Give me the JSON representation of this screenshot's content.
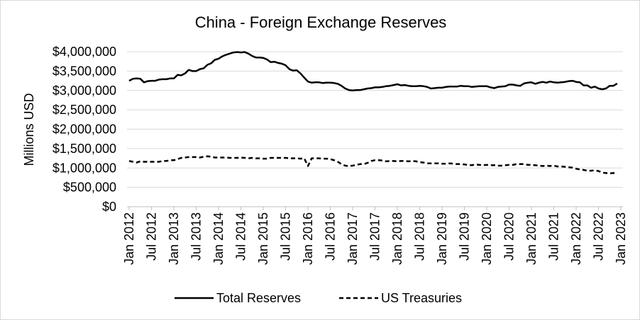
{
  "chart_data": {
    "type": "line",
    "title": "China - Foreign Exchange Reserves",
    "xlabel": "",
    "ylabel": "Millions USD",
    "ylim": [
      0,
      4000000
    ],
    "y_ticks": [
      0,
      500000,
      1000000,
      1500000,
      2000000,
      2500000,
      3000000,
      3500000,
      4000000
    ],
    "y_tick_labels": [
      "$0",
      "$500,000",
      "$1,000,000",
      "$1,500,000",
      "$2,000,000",
      "$2,500,000",
      "$3,000,000",
      "$3,500,000",
      "$4,000,000"
    ],
    "x_tick_labels": [
      "Jan 2012",
      "Jul 2012",
      "Jan 2013",
      "Jul 2013",
      "Jan 2014",
      "Jul 2014",
      "Jan 2015",
      "Jul 2015",
      "Jan 2016",
      "Jul 2016",
      "Jan 2017",
      "Jul 2017",
      "Jan 2018",
      "Jul 2018",
      "Jan 2019",
      "Jul 2019",
      "Jan 2020",
      "Jul 2020",
      "Jan 2021",
      "Jul 2021",
      "Jan 2022",
      "Jul 2022",
      "Jan 2023"
    ],
    "grid": "horizontal",
    "legend_position": "bottom",
    "series": [
      {
        "name": "Total Reserves",
        "style": "solid",
        "values": [
          3250000,
          3300000,
          3310000,
          3300000,
          3210000,
          3240000,
          3250000,
          3250000,
          3280000,
          3290000,
          3290000,
          3310000,
          3310000,
          3400000,
          3390000,
          3440000,
          3530000,
          3500000,
          3500000,
          3550000,
          3570000,
          3660000,
          3700000,
          3790000,
          3820000,
          3880000,
          3920000,
          3950000,
          3980000,
          3990000,
          3980000,
          3990000,
          3950000,
          3890000,
          3850000,
          3850000,
          3840000,
          3800000,
          3730000,
          3740000,
          3710000,
          3690000,
          3650000,
          3550000,
          3510000,
          3520000,
          3440000,
          3330000,
          3230000,
          3200000,
          3210000,
          3210000,
          3190000,
          3200000,
          3200000,
          3190000,
          3170000,
          3120000,
          3050000,
          3010000,
          3000000,
          3010000,
          3010000,
          3030000,
          3050000,
          3060000,
          3080000,
          3080000,
          3090000,
          3110000,
          3120000,
          3140000,
          3160000,
          3130000,
          3140000,
          3120000,
          3110000,
          3110000,
          3120000,
          3110000,
          3090000,
          3050000,
          3060000,
          3070000,
          3070000,
          3090000,
          3100000,
          3100000,
          3100000,
          3120000,
          3110000,
          3110000,
          3090000,
          3100000,
          3110000,
          3110000,
          3110000,
          3080000,
          3060000,
          3090000,
          3100000,
          3110000,
          3150000,
          3150000,
          3130000,
          3120000,
          3180000,
          3200000,
          3210000,
          3170000,
          3200000,
          3220000,
          3200000,
          3230000,
          3210000,
          3200000,
          3210000,
          3220000,
          3240000,
          3250000,
          3220000,
          3210000,
          3130000,
          3130000,
          3070000,
          3100000,
          3050000,
          3030000,
          3050000,
          3120000,
          3120000,
          3180000
        ]
      },
      {
        "name": "US Treasuries",
        "style": "dashed",
        "values": [
          1180000,
          1160000,
          1140000,
          1170000,
          1160000,
          1160000,
          1160000,
          1160000,
          1160000,
          1180000,
          1180000,
          1200000,
          1200000,
          1230000,
          1260000,
          1270000,
          1280000,
          1280000,
          1280000,
          1270000,
          1290000,
          1300000,
          1290000,
          1270000,
          1270000,
          1270000,
          1270000,
          1260000,
          1260000,
          1260000,
          1270000,
          1260000,
          1250000,
          1260000,
          1250000,
          1250000,
          1240000,
          1240000,
          1260000,
          1260000,
          1260000,
          1260000,
          1260000,
          1250000,
          1250000,
          1250000,
          1240000,
          1250000,
          1050000,
          1250000,
          1250000,
          1250000,
          1240000,
          1240000,
          1230000,
          1200000,
          1160000,
          1100000,
          1060000,
          1050000,
          1060000,
          1080000,
          1100000,
          1100000,
          1130000,
          1180000,
          1200000,
          1200000,
          1190000,
          1170000,
          1180000,
          1180000,
          1170000,
          1180000,
          1180000,
          1170000,
          1180000,
          1170000,
          1150000,
          1140000,
          1120000,
          1120000,
          1120000,
          1120000,
          1110000,
          1110000,
          1120000,
          1110000,
          1100000,
          1100000,
          1090000,
          1080000,
          1070000,
          1090000,
          1080000,
          1070000,
          1080000,
          1070000,
          1070000,
          1060000,
          1060000,
          1070000,
          1080000,
          1080000,
          1100000,
          1100000,
          1100000,
          1080000,
          1080000,
          1070000,
          1060000,
          1050000,
          1060000,
          1050000,
          1060000,
          1040000,
          1040000,
          1030000,
          1020000,
          1010000,
          980000,
          960000,
          950000,
          930000,
          930000,
          940000,
          920000,
          880000,
          870000,
          860000,
          870000,
          860000
        ]
      }
    ]
  }
}
